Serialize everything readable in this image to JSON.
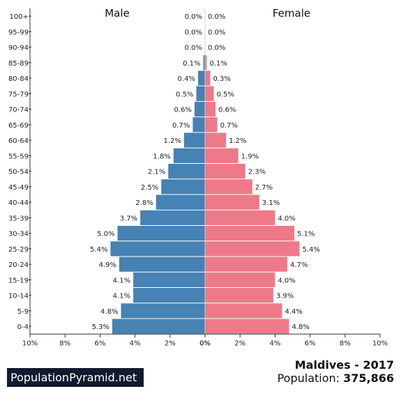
{
  "chart_data": {
    "type": "bar",
    "orientation": "horizontal-pyramid",
    "categories": [
      "100+",
      "95-99",
      "90-94",
      "85-89",
      "80-84",
      "75-79",
      "70-74",
      "65-69",
      "60-64",
      "55-59",
      "50-54",
      "45-49",
      "40-44",
      "35-39",
      "30-34",
      "25-29",
      "20-24",
      "15-19",
      "10-14",
      "5-9",
      "0-4"
    ],
    "series": [
      {
        "name": "Male",
        "color": "#4682b4",
        "values": [
          0.0,
          0.0,
          0.0,
          0.1,
          0.4,
          0.5,
          0.6,
          0.7,
          1.2,
          1.8,
          2.1,
          2.5,
          2.8,
          3.7,
          5.0,
          5.4,
          4.9,
          4.1,
          4.1,
          4.8,
          5.3
        ],
        "labels": [
          "0.0%",
          "0.0%",
          "0.0%",
          "0.1%",
          "0.4%",
          "0.5%",
          "0.6%",
          "0.7%",
          "1.2%",
          "1.8%",
          "2.1%",
          "2.5%",
          "2.8%",
          "3.7%",
          "5.0%",
          "5.4%",
          "4.9%",
          "4.1%",
          "4.1%",
          "4.8%",
          "5.3%"
        ]
      },
      {
        "name": "Female",
        "color": "#ee7989",
        "values": [
          0.0,
          0.0,
          0.0,
          0.1,
          0.3,
          0.5,
          0.6,
          0.7,
          1.2,
          1.9,
          2.3,
          2.7,
          3.1,
          4.0,
          5.1,
          5.4,
          4.7,
          4.0,
          3.9,
          4.4,
          4.8
        ],
        "labels": [
          "0.0%",
          "0.0%",
          "0.0%",
          "0.1%",
          "0.3%",
          "0.5%",
          "0.6%",
          "0.7%",
          "1.2%",
          "1.9%",
          "2.3%",
          "2.7%",
          "3.1%",
          "4.0%",
          "5.1%",
          "5.4%",
          "4.7%",
          "4.0%",
          "3.9%",
          "4.4%",
          "4.8%"
        ]
      }
    ],
    "xlim": [
      0,
      10
    ],
    "x_ticks_left": [
      "10%",
      "8%",
      "6%",
      "4%",
      "2%",
      "0%"
    ],
    "x_ticks_right": [
      "0%",
      "2%",
      "4%",
      "6%",
      "8%",
      "10%"
    ],
    "grid": false
  },
  "footer": {
    "brand": "PopulationPyramid.net",
    "country_year": "Maldives - 2017",
    "population_label": "Population: ",
    "population_value": "375,866"
  }
}
